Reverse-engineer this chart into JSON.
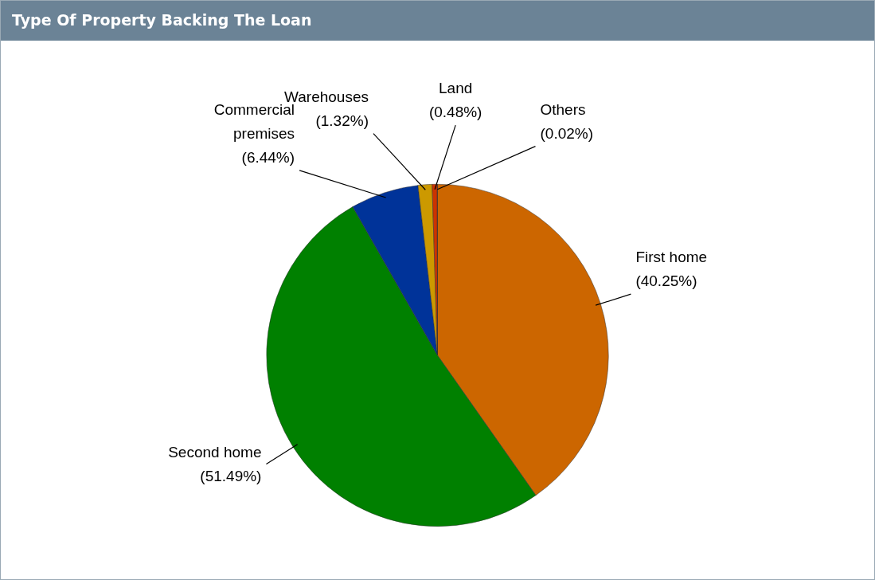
{
  "chart_data": {
    "type": "pie",
    "title": "Type Of Property Backing The Loan",
    "categories": [
      "First home",
      "Second home",
      "Commercial premises",
      "Warehouses",
      "Land",
      "Others"
    ],
    "values": [
      40.25,
      51.49,
      6.44,
      1.32,
      0.48,
      0.02
    ],
    "colors": [
      "#cc6600",
      "#008000",
      "#003399",
      "#cc9900",
      "#cc3300",
      "#ff6600"
    ],
    "value_labels": [
      "(40.25%)",
      "(51.49%)",
      "(6.44%)",
      "(1.32%)",
      "(0.48%)",
      "(0.02%)"
    ],
    "legend": false
  }
}
